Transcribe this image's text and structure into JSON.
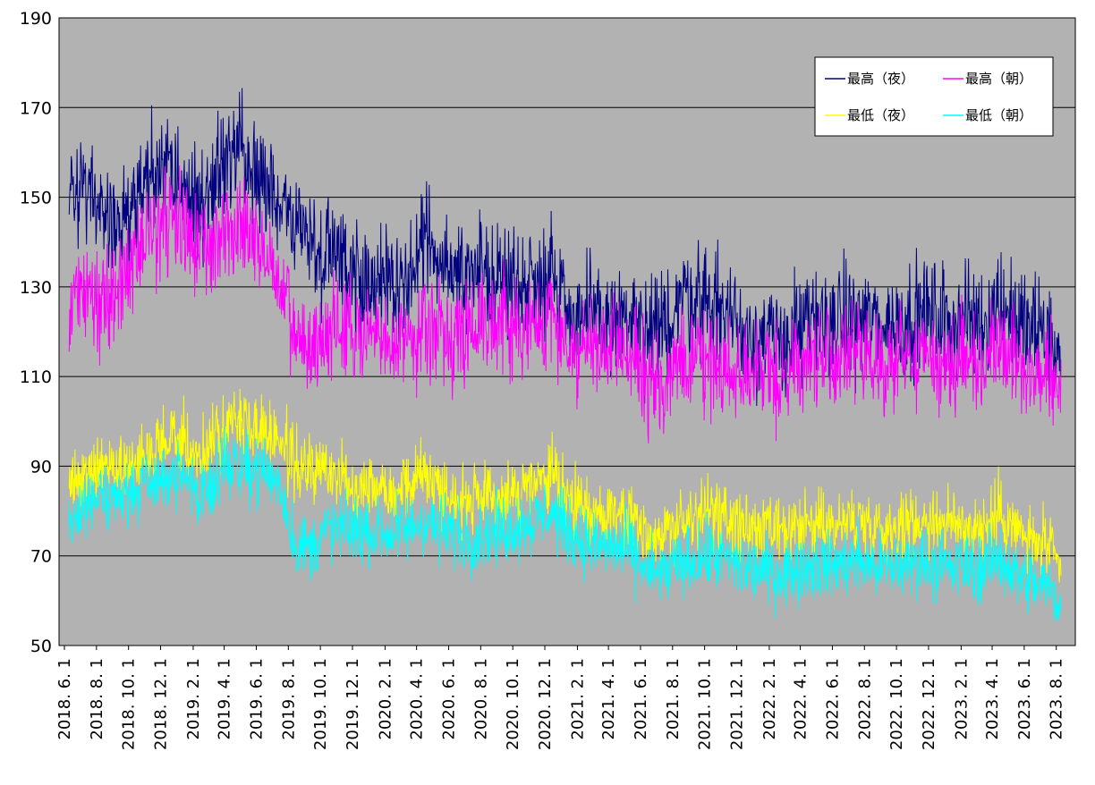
{
  "chart_data": {
    "type": "line",
    "title": "",
    "xlabel": "",
    "ylabel": "",
    "ylim": [
      50,
      190
    ],
    "y_ticks": [
      50,
      70,
      90,
      110,
      130,
      150,
      170,
      190
    ],
    "x_range": [
      "2018-06-01",
      "2023-08-10"
    ],
    "x_tick_labels": [
      "2018. 6. 1",
      "2018. 8. 1",
      "2018. 10. 1",
      "2018. 12. 1",
      "2019. 2. 1",
      "2019. 4. 1",
      "2019. 6. 1",
      "2019. 8. 1",
      "2019. 10. 1",
      "2019. 12. 1",
      "2020. 2. 1",
      "2020. 4. 1",
      "2020. 6. 1",
      "2020. 8. 1",
      "2020. 10. 1",
      "2020. 12. 1",
      "2021. 2. 1",
      "2021. 4. 1",
      "2021. 6. 1",
      "2021. 8. 1",
      "2021. 10. 1",
      "2021. 12. 1",
      "2022. 2. 1",
      "2022. 4. 1",
      "2022. 6. 1",
      "2022. 8. 1",
      "2022. 10. 1",
      "2022. 12. 1",
      "2023. 2. 1",
      "2023. 4. 1",
      "2023. 6. 1",
      "2023. 8. 1"
    ],
    "x_tick_dates": [
      "2018-06-01",
      "2018-08-01",
      "2018-10-01",
      "2018-12-01",
      "2019-02-01",
      "2019-04-01",
      "2019-06-01",
      "2019-08-01",
      "2019-10-01",
      "2019-12-01",
      "2020-02-01",
      "2020-04-01",
      "2020-06-01",
      "2020-08-01",
      "2020-10-01",
      "2020-12-01",
      "2021-02-01",
      "2021-04-01",
      "2021-06-01",
      "2021-08-01",
      "2021-10-01",
      "2021-12-01",
      "2022-02-01",
      "2022-04-01",
      "2022-06-01",
      "2022-08-01",
      "2022-10-01",
      "2022-12-01",
      "2023-02-01",
      "2023-04-01",
      "2023-06-01",
      "2023-08-01"
    ],
    "grid": "horizontal",
    "plot_background": "#b2b2b2",
    "legend_position": "top-right",
    "x_points": [
      "2018-06-10",
      "2018-07-15",
      "2018-08-15",
      "2018-09-15",
      "2018-10-15",
      "2018-11-15",
      "2018-12-15",
      "2019-01-15",
      "2019-02-15",
      "2019-03-15",
      "2019-04-15",
      "2019-05-15",
      "2019-06-15",
      "2019-07-15",
      "2019-08-15",
      "2019-09-15",
      "2019-10-15",
      "2019-11-15",
      "2019-12-15",
      "2020-01-15",
      "2020-02-15",
      "2020-03-15",
      "2020-04-15",
      "2020-05-15",
      "2020-06-15",
      "2020-07-15",
      "2020-08-15",
      "2020-09-15",
      "2020-10-15",
      "2020-11-15",
      "2020-12-15",
      "2021-01-15",
      "2021-02-15",
      "2021-03-15",
      "2021-04-15",
      "2021-05-15",
      "2021-06-15",
      "2021-07-15",
      "2021-08-15",
      "2021-09-15",
      "2021-10-15",
      "2021-11-15",
      "2021-12-15",
      "2022-01-15",
      "2022-02-15",
      "2022-03-15",
      "2022-04-15",
      "2022-05-15",
      "2022-06-15",
      "2022-07-15",
      "2022-08-15",
      "2022-09-15",
      "2022-10-15",
      "2022-11-15",
      "2022-12-15",
      "2023-01-15",
      "2023-02-15",
      "2023-03-15",
      "2023-04-15",
      "2023-05-15",
      "2023-06-15",
      "2023-07-15",
      "2023-08-10"
    ],
    "series": [
      {
        "name": "最高（夜）",
        "color": "#000080",
        "values": [
          150,
          152,
          145,
          142,
          150,
          155,
          158,
          152,
          148,
          155,
          160,
          157,
          152,
          148,
          144,
          140,
          138,
          136,
          133,
          130,
          128,
          131,
          140,
          139,
          133,
          132,
          133,
          131,
          131,
          132,
          134,
          125,
          123,
          123,
          123,
          122,
          118,
          120,
          128,
          128,
          126,
          124,
          120,
          119,
          117,
          119,
          121,
          122,
          122,
          123,
          122,
          121,
          122,
          124,
          123,
          122,
          123,
          122,
          127,
          122,
          120,
          120,
          112
        ],
        "spread": 10
      },
      {
        "name": "最高（朝）",
        "color": "#ff00ff",
        "values": [
          125,
          130,
          128,
          130,
          138,
          143,
          146,
          142,
          138,
          140,
          145,
          142,
          138,
          130,
          118,
          116,
          120,
          121,
          119,
          118,
          117,
          119,
          121,
          120,
          119,
          121,
          124,
          122,
          120,
          121,
          123,
          117,
          116,
          115,
          116,
          115,
          108,
          109,
          113,
          114,
          113,
          112,
          111,
          111,
          110,
          112,
          114,
          114,
          114,
          115,
          114,
          113,
          114,
          115,
          114,
          113,
          114,
          113,
          120,
          113,
          111,
          110,
          108
        ],
        "spread": 9
      },
      {
        "name": "最低（夜）",
        "color": "#ffff00",
        "values": [
          86,
          88,
          90,
          89,
          91,
          93,
          96,
          95,
          92,
          96,
          101,
          99,
          98,
          96,
          90,
          89,
          89,
          87,
          86,
          86,
          85,
          86,
          89,
          85,
          83,
          82,
          82,
          83,
          84,
          86,
          88,
          82,
          80,
          79,
          80,
          79,
          75,
          75,
          77,
          79,
          80,
          78,
          76,
          76,
          75,
          75,
          77,
          77,
          77,
          78,
          77,
          76,
          77,
          78,
          78,
          77,
          77,
          76,
          80,
          76,
          73,
          72,
          66
        ],
        "spread": 6
      },
      {
        "name": "最低（朝）",
        "color": "#00ffff",
        "values": [
          78,
          82,
          84,
          83,
          85,
          86,
          88,
          87,
          84,
          88,
          91,
          90,
          89,
          86,
          72,
          72,
          76,
          76,
          76,
          75,
          75,
          76,
          78,
          76,
          75,
          74,
          75,
          76,
          77,
          78,
          80,
          75,
          73,
          72,
          72,
          71,
          66,
          66,
          68,
          69,
          70,
          69,
          67,
          67,
          66,
          67,
          68,
          68,
          68,
          69,
          68,
          67,
          68,
          69,
          68,
          67,
          68,
          67,
          70,
          66,
          64,
          63,
          60
        ],
        "spread": 6
      }
    ]
  }
}
